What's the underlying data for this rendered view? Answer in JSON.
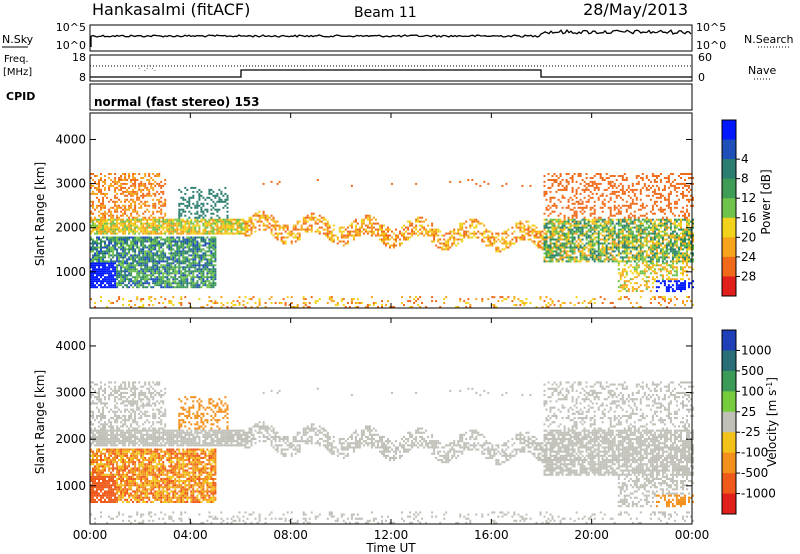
{
  "header": {
    "station": "Hankasalmi (fitACF)",
    "beam": "Beam 11",
    "date": "28/May/2013"
  },
  "panels": {
    "nsky": {
      "label": "N.Sky",
      "left_ticks": [
        "10^5",
        "10^0"
      ],
      "right_ticks": [
        "10^5",
        "10^0"
      ],
      "right_label": "N.Search"
    },
    "freq": {
      "label_line1": "Freq.",
      "label_line2": "[MHz]",
      "left_ticks": [
        "18",
        "8"
      ],
      "right_ticks": [
        "60",
        "0"
      ],
      "right_label": "Nave"
    },
    "cpid": {
      "label": "CPID",
      "mode": "normal (fast stereo) 153"
    }
  },
  "chart_data": [
    {
      "type": "heatmap",
      "panel": "power",
      "ylabel": "Slant Range [km]",
      "xlabel": "Time UT",
      "x_ticks": [
        "00:00",
        "04:00",
        "08:00",
        "12:00",
        "16:00",
        "20:00",
        "00:00"
      ],
      "y_ticks": [
        "1000",
        "2000",
        "3000",
        "4000"
      ],
      "ylim": [
        180,
        4600
      ],
      "xlim_hours": [
        0,
        24
      ],
      "colorbar": {
        "label": "Power [dB]",
        "ticks": [
          "4",
          "8",
          "12",
          "16",
          "20",
          "24",
          "28"
        ],
        "colors": [
          "#0018ff",
          "#1f4fb8",
          "#2a7d6f",
          "#3f9c56",
          "#6fc24a",
          "#f2d21a",
          "#f7a21b",
          "#f06a1a",
          "#e2201b"
        ]
      }
    },
    {
      "type": "heatmap",
      "panel": "velocity",
      "ylabel": "Slant Range [km]",
      "xlabel": "Time UT",
      "x_ticks": [
        "00:00",
        "04:00",
        "08:00",
        "12:00",
        "16:00",
        "20:00",
        "00:00"
      ],
      "y_ticks": [
        "1000",
        "2000",
        "3000",
        "4000"
      ],
      "ylim": [
        180,
        4600
      ],
      "xlim_hours": [
        0,
        24
      ],
      "colorbar": {
        "label": "Velocity [m s",
        "label_sup": "-1",
        "label_end": "]",
        "ticks": [
          "1000",
          "500",
          "100",
          "25",
          "-25",
          "-100",
          "-500",
          "-1000"
        ],
        "colors": [
          "#1f3fb8",
          "#2a6f78",
          "#3b9a58",
          "#76cc3c",
          "#c0c0b8",
          "#f2c21a",
          "#f2901b",
          "#ef5a1a",
          "#e2201b"
        ]
      }
    }
  ]
}
